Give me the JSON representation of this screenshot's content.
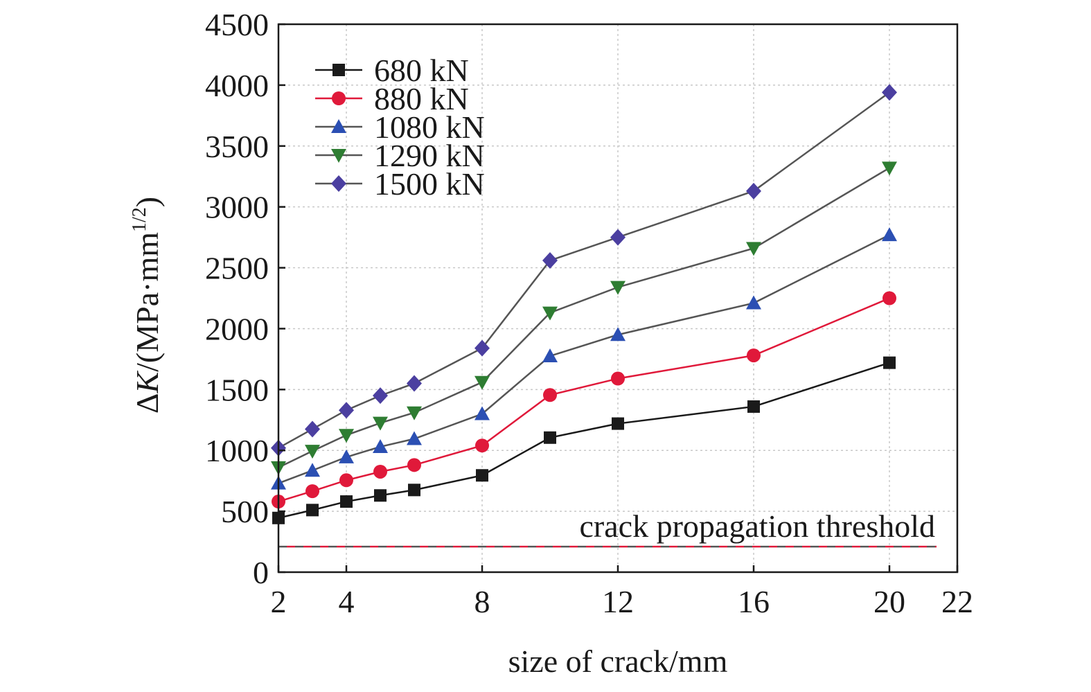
{
  "chart_data": {
    "type": "line",
    "title": "",
    "xlabel": "size of crack/mm",
    "ylabel": {
      "prefix": "Δ",
      "italic": "K",
      "middle": "/(MPa·mm",
      "sup": "1/2",
      "suffix": ")"
    },
    "xlim": [
      2,
      22
    ],
    "ylim": [
      0,
      4500
    ],
    "xticks": [
      2,
      4,
      8,
      12,
      16,
      20,
      22
    ],
    "yticks": [
      0,
      500,
      1000,
      1500,
      2000,
      2500,
      3000,
      3500,
      4000,
      4500
    ],
    "grid": true,
    "legend_position": "top-left",
    "x": [
      2,
      3,
      4,
      5,
      6,
      8,
      10,
      12,
      16,
      20
    ],
    "series": [
      {
        "name": "680 kN",
        "color": "#1a1a1a",
        "marker": "square",
        "values": [
          445,
          510,
          580,
          630,
          675,
          795,
          1105,
          1220,
          1360,
          1720
        ]
      },
      {
        "name": "880 kN",
        "color": "#e0193a",
        "marker": "circle",
        "values": [
          580,
          665,
          755,
          825,
          880,
          1040,
          1455,
          1590,
          1780,
          2250
        ]
      },
      {
        "name": "1080 kN",
        "color": "#2b4fb3",
        "marker": "triangle-up",
        "values": [
          730,
          835,
          945,
          1030,
          1095,
          1300,
          1775,
          1950,
          2210,
          2770
        ]
      },
      {
        "name": "1290 kN",
        "color": "#2e7d32",
        "marker": "triangle-down",
        "values": [
          860,
          995,
          1125,
          1225,
          1310,
          1560,
          2130,
          2340,
          2660,
          3320
        ]
      },
      {
        "name": "1500 kN",
        "color": "#4b3fa0",
        "marker": "diamond",
        "values": [
          1020,
          1175,
          1330,
          1450,
          1550,
          1840,
          2560,
          2750,
          3130,
          3940
        ]
      }
    ],
    "threshold": {
      "label": "crack propagation threshold",
      "value": 210,
      "colors": [
        "#e0193a",
        "#555555"
      ]
    },
    "series_line_color": "#555555"
  }
}
